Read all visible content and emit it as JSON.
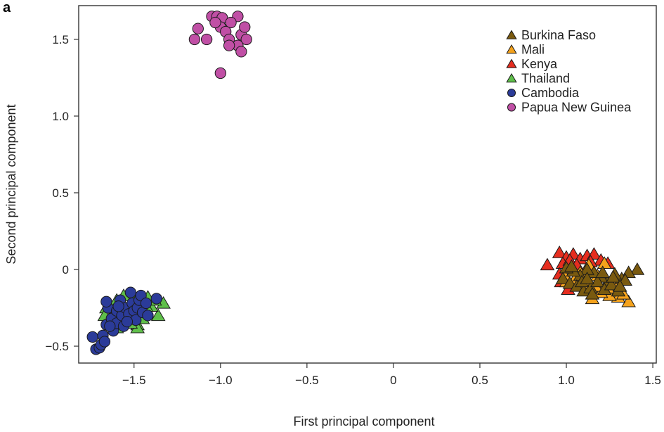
{
  "panel_label": "a",
  "chart_data": {
    "type": "scatter",
    "title": "",
    "xlabel": "First principal component",
    "ylabel": "Second principal component",
    "xlim": [
      -1.82,
      1.52
    ],
    "ylim": [
      -0.61,
      1.72
    ],
    "xticks": [
      -1.5,
      -1.0,
      -0.5,
      0,
      0.5,
      1.0,
      1.5
    ],
    "xtick_labels": [
      "−1.5",
      "−1.0",
      "−0.5",
      "0",
      "0.5",
      "1.0",
      "1.5"
    ],
    "yticks": [
      -0.5,
      0,
      0.5,
      1.0,
      1.5
    ],
    "ytick_labels": [
      "−0.5",
      "0",
      "0.5",
      "1.0",
      "1.5"
    ],
    "grid": false,
    "legend_position": "top-right",
    "series": [
      {
        "name": "Burkina Faso",
        "marker": "triangle",
        "color": "#7a5a0f",
        "points": [
          [
            1.41,
            0.0
          ],
          [
            1.36,
            -0.02
          ],
          [
            1.32,
            -0.06
          ],
          [
            1.28,
            -0.03
          ],
          [
            1.24,
            -0.08
          ],
          [
            1.2,
            -0.05
          ],
          [
            1.16,
            -0.02
          ],
          [
            1.12,
            0.0
          ],
          [
            1.08,
            -0.04
          ],
          [
            1.04,
            -0.01
          ],
          [
            1.0,
            0.01
          ],
          [
            0.98,
            -0.06
          ],
          [
            1.02,
            -0.09
          ],
          [
            1.06,
            -0.11
          ],
          [
            1.1,
            -0.14
          ],
          [
            1.14,
            -0.12
          ],
          [
            1.18,
            -0.08
          ],
          [
            1.22,
            -0.13
          ],
          [
            1.26,
            -0.1
          ],
          [
            1.3,
            -0.14
          ],
          [
            1.34,
            -0.07
          ],
          [
            1.15,
            -0.16
          ],
          [
            1.09,
            -0.08
          ],
          [
            1.21,
            -0.02
          ],
          [
            1.27,
            -0.05
          ],
          [
            1.03,
            0.02
          ],
          [
            1.12,
            -0.06
          ],
          [
            1.31,
            -0.11
          ]
        ]
      },
      {
        "name": "Mali",
        "marker": "triangle",
        "color": "#f4a21c",
        "points": [
          [
            1.36,
            -0.21
          ],
          [
            1.3,
            -0.18
          ],
          [
            1.25,
            -0.17
          ],
          [
            1.2,
            -0.15
          ],
          [
            1.15,
            -0.19
          ],
          [
            1.28,
            -0.09
          ],
          [
            1.24,
            -0.12
          ],
          [
            1.18,
            -0.04
          ],
          [
            1.13,
            0.03
          ],
          [
            1.08,
            -0.02
          ],
          [
            1.0,
            -0.08
          ],
          [
            0.99,
            -0.04
          ],
          [
            1.33,
            -0.16
          ],
          [
            1.22,
            0.04
          ],
          [
            1.17,
            -0.11
          ],
          [
            1.11,
            -0.09
          ],
          [
            1.05,
            -0.06
          ]
        ]
      },
      {
        "name": "Kenya",
        "marker": "triangle",
        "color": "#e62d1f",
        "points": [
          [
            0.89,
            0.03
          ],
          [
            0.96,
            0.11
          ],
          [
            1.0,
            0.08
          ],
          [
            1.04,
            0.1
          ],
          [
            1.08,
            0.07
          ],
          [
            1.12,
            0.09
          ],
          [
            1.16,
            0.1
          ],
          [
            1.2,
            0.06
          ],
          [
            1.24,
            0.04
          ],
          [
            0.98,
            0.04
          ],
          [
            1.02,
            0.06
          ],
          [
            1.06,
            0.03
          ],
          [
            0.96,
            -0.03
          ],
          [
            0.97,
            -0.08
          ],
          [
            1.01,
            -0.13
          ],
          [
            1.14,
            0.05
          ]
        ]
      },
      {
        "name": "Thailand",
        "marker": "triangle",
        "color": "#5fbf4a",
        "points": [
          [
            -1.33,
            -0.22
          ],
          [
            -1.36,
            -0.3
          ],
          [
            -1.4,
            -0.24
          ],
          [
            -1.42,
            -0.18
          ],
          [
            -1.44,
            -0.27
          ],
          [
            -1.46,
            -0.21
          ],
          [
            -1.49,
            -0.31
          ],
          [
            -1.48,
            -0.36
          ],
          [
            -1.5,
            -0.2
          ],
          [
            -1.53,
            -0.25
          ],
          [
            -1.55,
            -0.33
          ],
          [
            -1.58,
            -0.23
          ],
          [
            -1.6,
            -0.38
          ],
          [
            -1.62,
            -0.28
          ],
          [
            -1.64,
            -0.32
          ],
          [
            -1.66,
            -0.25
          ],
          [
            -1.48,
            -0.38
          ],
          [
            -1.56,
            -0.17
          ],
          [
            -1.52,
            -0.35
          ],
          [
            -1.45,
            -0.32
          ],
          [
            -1.6,
            -0.2
          ],
          [
            -1.67,
            -0.3
          ],
          [
            -1.43,
            -0.24
          ],
          [
            -1.38,
            -0.2
          ]
        ]
      },
      {
        "name": "Cambodia",
        "marker": "circle",
        "color": "#2b3b99",
        "points": [
          [
            -1.74,
            -0.44
          ],
          [
            -1.72,
            -0.52
          ],
          [
            -1.7,
            -0.51
          ],
          [
            -1.69,
            -0.49
          ],
          [
            -1.68,
            -0.43
          ],
          [
            -1.67,
            -0.47
          ],
          [
            -1.66,
            -0.36
          ],
          [
            -1.65,
            -0.25
          ],
          [
            -1.66,
            -0.21
          ],
          [
            -1.63,
            -0.32
          ],
          [
            -1.62,
            -0.4
          ],
          [
            -1.6,
            -0.35
          ],
          [
            -1.6,
            -0.27
          ],
          [
            -1.58,
            -0.2
          ],
          [
            -1.57,
            -0.3
          ],
          [
            -1.56,
            -0.37
          ],
          [
            -1.55,
            -0.25
          ],
          [
            -1.53,
            -0.29
          ],
          [
            -1.52,
            -0.15
          ],
          [
            -1.51,
            -0.22
          ],
          [
            -1.5,
            -0.27
          ],
          [
            -1.49,
            -0.33
          ],
          [
            -1.48,
            -0.25
          ],
          [
            -1.47,
            -0.2
          ],
          [
            -1.46,
            -0.17
          ],
          [
            -1.45,
            -0.28
          ],
          [
            -1.43,
            -0.22
          ],
          [
            -1.42,
            -0.3
          ],
          [
            -1.37,
            -0.19
          ],
          [
            -1.54,
            -0.34
          ],
          [
            -1.64,
            -0.37
          ],
          [
            -1.59,
            -0.24
          ]
        ]
      },
      {
        "name": "Papua New Guinea",
        "marker": "circle",
        "color": "#c04fa5",
        "points": [
          [
            -1.05,
            1.65
          ],
          [
            -1.02,
            1.65
          ],
          [
            -0.99,
            1.64
          ],
          [
            -0.9,
            1.65
          ],
          [
            -0.94,
            1.61
          ],
          [
            -1.0,
            1.58
          ],
          [
            -1.03,
            1.61
          ],
          [
            -1.13,
            1.57
          ],
          [
            -1.15,
            1.5
          ],
          [
            -1.08,
            1.5
          ],
          [
            -0.97,
            1.55
          ],
          [
            -0.95,
            1.5
          ],
          [
            -0.88,
            1.53
          ],
          [
            -0.86,
            1.58
          ],
          [
            -0.85,
            1.5
          ],
          [
            -0.9,
            1.46
          ],
          [
            -0.95,
            1.46
          ],
          [
            -0.88,
            1.42
          ],
          [
            -1.0,
            1.28
          ]
        ]
      }
    ]
  }
}
